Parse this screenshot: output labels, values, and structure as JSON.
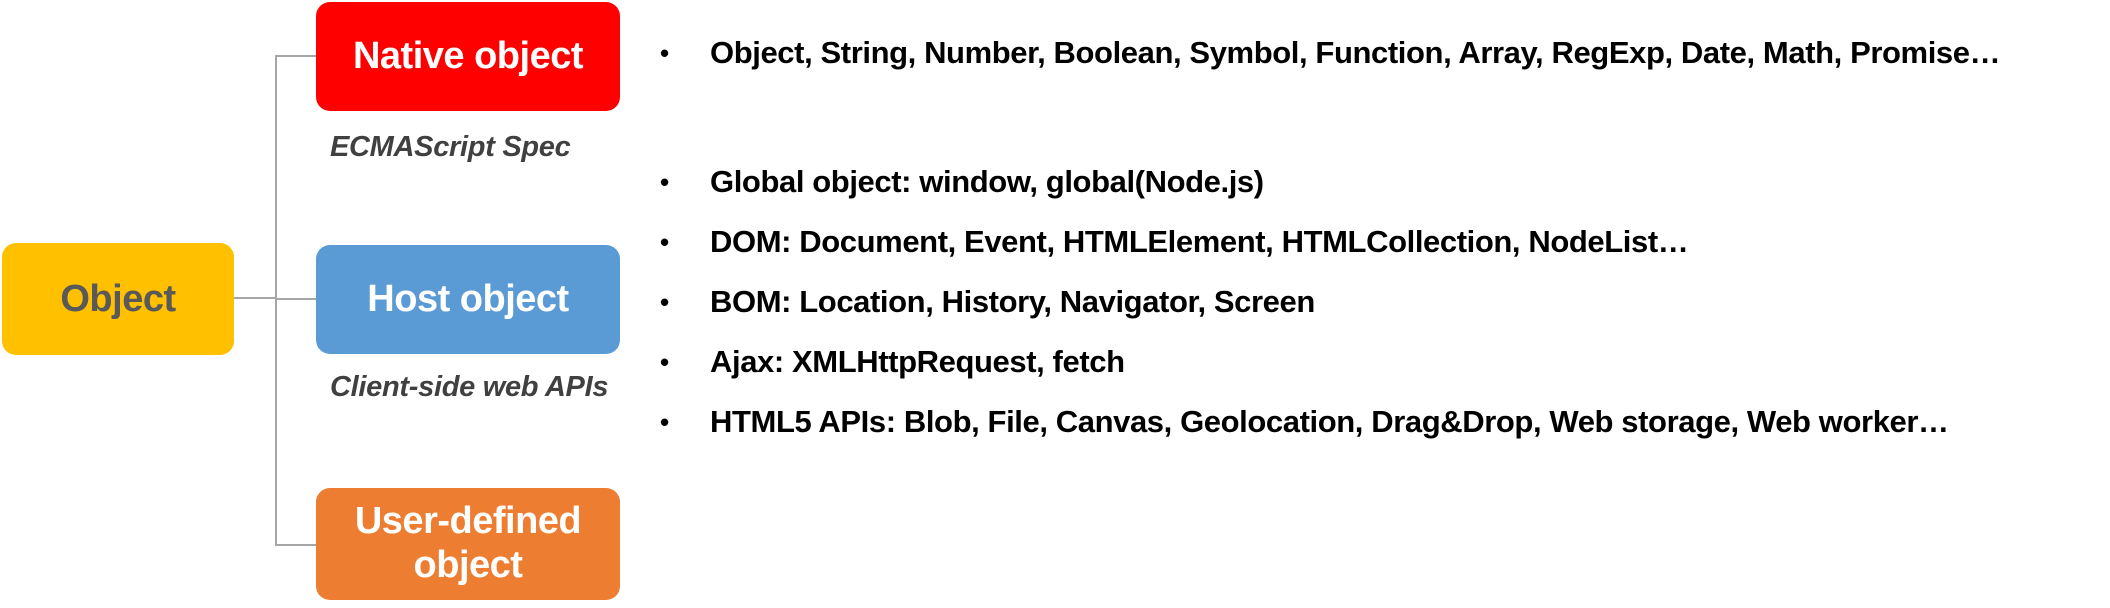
{
  "colors": {
    "root": "#FFC000",
    "native": "#FF0000",
    "host": "#5B9BD5",
    "user_defined": "#ED7D31",
    "connector": "#A6A6A6"
  },
  "root": {
    "label": "Object"
  },
  "branches": {
    "native": {
      "label": "Native object",
      "caption": "ECMAScript Spec"
    },
    "host": {
      "label": "Host object",
      "caption": "Client-side web APIs"
    },
    "user_defined": {
      "label_line1": "User-defined",
      "label_line2": "object"
    }
  },
  "native_items": [
    "Object, String, Number, Boolean, Symbol, Function, Array, RegExp, Date, Math, Promise…"
  ],
  "host_items": [
    "Global object: window, global(Node.js)",
    "DOM: Document, Event, HTMLElement, HTMLCollection, NodeList…",
    "BOM: Location, History, Navigator, Screen",
    "Ajax: XMLHttpRequest, fetch",
    "HTML5 APIs: Blob, File, Canvas, Geolocation, Drag&Drop, Web storage, Web worker…"
  ],
  "bullet_symbol": "•"
}
